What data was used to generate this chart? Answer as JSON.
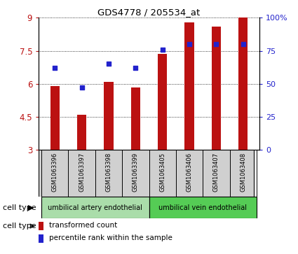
{
  "title": "GDS4778 / 205534_at",
  "samples": [
    "GSM1063396",
    "GSM1063397",
    "GSM1063398",
    "GSM1063399",
    "GSM1063405",
    "GSM1063406",
    "GSM1063407",
    "GSM1063408"
  ],
  "red_values": [
    5.9,
    4.6,
    6.1,
    5.85,
    7.35,
    8.8,
    8.6,
    9.0
  ],
  "blue_values": [
    62,
    47,
    65,
    62,
    76,
    80,
    80,
    80
  ],
  "ylim_left": [
    3,
    9
  ],
  "ylim_right": [
    0,
    100
  ],
  "yticks_left": [
    3,
    4.5,
    6,
    7.5,
    9
  ],
  "yticks_right": [
    0,
    25,
    50,
    75,
    100
  ],
  "ytick_labels_left": [
    "3",
    "4.5",
    "6",
    "7.5",
    "9"
  ],
  "ytick_labels_right": [
    "0",
    "25",
    "50",
    "75",
    "100%"
  ],
  "bar_color": "#bb1111",
  "dot_color": "#2222cc",
  "cell_type_colors": [
    "#aaddaa",
    "#55cc55"
  ],
  "cell_type_labels": [
    "umbilical artery endothelial",
    "umbilical vein endothelial"
  ],
  "cell_type_ranges": [
    [
      0,
      4
    ],
    [
      4,
      8
    ]
  ],
  "legend_items": [
    {
      "color": "#bb1111",
      "label": "transformed count"
    },
    {
      "color": "#2222cc",
      "label": "percentile rank within the sample"
    }
  ],
  "cell_type_label": "cell type",
  "background_color": "#ffffff",
  "bar_bottom": 3.0,
  "bar_width": 0.35
}
